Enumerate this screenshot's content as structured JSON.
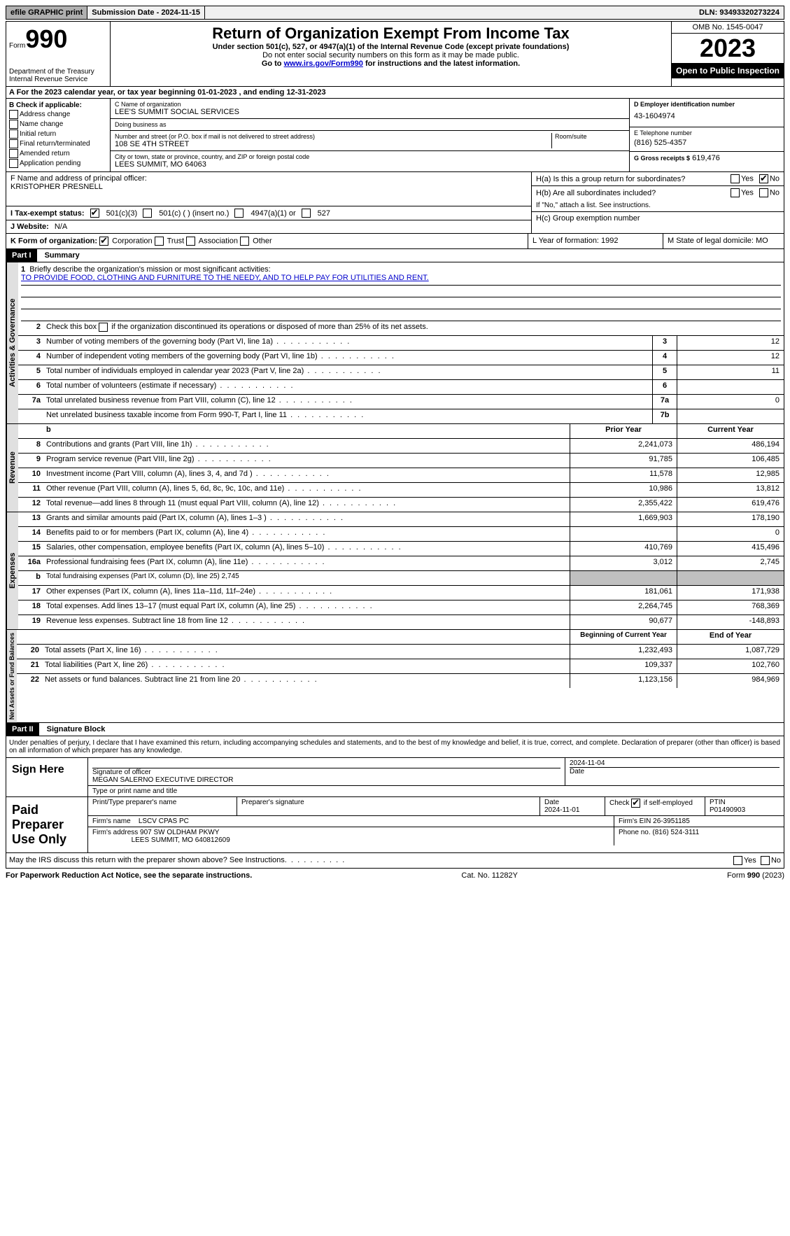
{
  "topbar": {
    "efile": "efile GRAPHIC print",
    "submission": "Submission Date - 2024-11-15",
    "dln": "DLN: 93493320273224"
  },
  "header": {
    "form_prefix": "Form",
    "form_num": "990",
    "dept": "Department of the Treasury",
    "irs": "Internal Revenue Service",
    "title": "Return of Organization Exempt From Income Tax",
    "sub1": "Under section 501(c), 527, or 4947(a)(1) of the Internal Revenue Code (except private foundations)",
    "sub2": "Do not enter social security numbers on this form as it may be made public.",
    "sub3_pre": "Go to ",
    "sub3_link": "www.irs.gov/Form990",
    "sub3_post": " for instructions and the latest information.",
    "omb": "OMB No. 1545-0047",
    "year": "2023",
    "open": "Open to Public Inspection"
  },
  "a_row": "A For the 2023 calendar year, or tax year beginning 01-01-2023   , and ending 12-31-2023",
  "b": {
    "label": "B Check if applicable:",
    "items": [
      "Address change",
      "Name change",
      "Initial return",
      "Final return/terminated",
      "Amended return",
      "Application pending"
    ]
  },
  "c": {
    "name_label": "C Name of organization",
    "name": "LEE'S SUMMIT SOCIAL SERVICES",
    "dba_label": "Doing business as",
    "dba": "",
    "street_label": "Number and street (or P.O. box if mail is not delivered to street address)",
    "street": "108 SE 4TH STREET",
    "room_label": "Room/suite",
    "city_label": "City or town, state or province, country, and ZIP or foreign postal code",
    "city": "LEES SUMMIT, MO  64063"
  },
  "d": {
    "label": "D Employer identification number",
    "value": "43-1604974"
  },
  "e": {
    "label": "E Telephone number",
    "value": "(816) 525-4357"
  },
  "g": {
    "label": "G Gross receipts $",
    "value": "619,476"
  },
  "f": {
    "label": "F  Name and address of principal officer:",
    "name": "KRISTOPHER PRESNELL"
  },
  "h": {
    "a": "H(a)  Is this a group return for subordinates?",
    "a_no_checked": true,
    "b": "H(b)  Are all subordinates included?",
    "b_note": "If \"No,\" attach a list. See instructions.",
    "c": "H(c)  Group exemption number"
  },
  "i": {
    "label": "I   Tax-exempt status:",
    "opt1": "501(c)(3)",
    "opt2": "501(c) (  ) (insert no.)",
    "opt3": "4947(a)(1) or",
    "opt4": "527"
  },
  "j": {
    "label": "J   Website:",
    "value": "N/A"
  },
  "k": {
    "label": "K Form of organization:",
    "opts": [
      "Corporation",
      "Trust",
      "Association",
      "Other"
    ],
    "l": "L Year of formation: 1992",
    "m": "M State of legal domicile: MO"
  },
  "part1": {
    "num": "Part I",
    "title": "Summary"
  },
  "summary": {
    "sec1_label": "Activities & Governance",
    "sec2_label": "Revenue",
    "sec3_label": "Expenses",
    "sec4_label": "Net Assets or Fund Balances",
    "line1": "Briefly describe the organization's mission or most significant activities:",
    "mission": "TO PROVIDE FOOD, CLOTHING AND FURNITURE TO THE NEEDY, AND TO HELP PAY FOR UTILITIES AND RENT.",
    "line2": "Check this box       if the organization discontinued its operations or disposed of more than 25% of its net assets.",
    "hdr_prior": "Prior Year",
    "hdr_current": "Current Year",
    "hdr_begin": "Beginning of Current Year",
    "hdr_end": "End of Year",
    "rows_gov": [
      {
        "n": "3",
        "t": "Number of voting members of the governing body (Part VI, line 1a)",
        "box": "3",
        "v": "12"
      },
      {
        "n": "4",
        "t": "Number of independent voting members of the governing body (Part VI, line 1b)",
        "box": "4",
        "v": "12"
      },
      {
        "n": "5",
        "t": "Total number of individuals employed in calendar year 2023 (Part V, line 2a)",
        "box": "5",
        "v": "11"
      },
      {
        "n": "6",
        "t": "Total number of volunteers (estimate if necessary)",
        "box": "6",
        "v": ""
      },
      {
        "n": "7a",
        "t": "Total unrelated business revenue from Part VIII, column (C), line 12",
        "box": "7a",
        "v": "0"
      },
      {
        "n": "",
        "t": "Net unrelated business taxable income from Form 990-T, Part I, line 11",
        "box": "7b",
        "v": ""
      }
    ],
    "rows_rev": [
      {
        "n": "8",
        "t": "Contributions and grants (Part VIII, line 1h)",
        "p": "2,241,073",
        "c": "486,194"
      },
      {
        "n": "9",
        "t": "Program service revenue (Part VIII, line 2g)",
        "p": "91,785",
        "c": "106,485"
      },
      {
        "n": "10",
        "t": "Investment income (Part VIII, column (A), lines 3, 4, and 7d )",
        "p": "11,578",
        "c": "12,985"
      },
      {
        "n": "11",
        "t": "Other revenue (Part VIII, column (A), lines 5, 6d, 8c, 9c, 10c, and 11e)",
        "p": "10,986",
        "c": "13,812"
      },
      {
        "n": "12",
        "t": "Total revenue—add lines 8 through 11 (must equal Part VIII, column (A), line 12)",
        "p": "2,355,422",
        "c": "619,476"
      }
    ],
    "rows_exp": [
      {
        "n": "13",
        "t": "Grants and similar amounts paid (Part IX, column (A), lines 1–3 )",
        "p": "1,669,903",
        "c": "178,190"
      },
      {
        "n": "14",
        "t": "Benefits paid to or for members (Part IX, column (A), line 4)",
        "p": "",
        "c": "0"
      },
      {
        "n": "15",
        "t": "Salaries, other compensation, employee benefits (Part IX, column (A), lines 5–10)",
        "p": "410,769",
        "c": "415,496"
      },
      {
        "n": "16a",
        "t": "Professional fundraising fees (Part IX, column (A), line 11e)",
        "p": "3,012",
        "c": "2,745"
      },
      {
        "n": "b",
        "t": "Total fundraising expenses (Part IX, column (D), line 25) 2,745",
        "gray": true
      },
      {
        "n": "17",
        "t": "Other expenses (Part IX, column (A), lines 11a–11d, 11f–24e)",
        "p": "181,061",
        "c": "171,938"
      },
      {
        "n": "18",
        "t": "Total expenses. Add lines 13–17 (must equal Part IX, column (A), line 25)",
        "p": "2,264,745",
        "c": "768,369"
      },
      {
        "n": "19",
        "t": "Revenue less expenses. Subtract line 18 from line 12",
        "p": "90,677",
        "c": "-148,893"
      }
    ],
    "rows_net": [
      {
        "n": "20",
        "t": "Total assets (Part X, line 16)",
        "p": "1,232,493",
        "c": "1,087,729"
      },
      {
        "n": "21",
        "t": "Total liabilities (Part X, line 26)",
        "p": "109,337",
        "c": "102,760"
      },
      {
        "n": "22",
        "t": "Net assets or fund balances. Subtract line 21 from line 20",
        "p": "1,123,156",
        "c": "984,969"
      }
    ]
  },
  "part2": {
    "num": "Part II",
    "title": "Signature Block"
  },
  "penalties": "Under penalties of perjury, I declare that I have examined this return, including accompanying schedules and statements, and to the best of my knowledge and belief, it is true, correct, and complete. Declaration of preparer (other than officer) is based on all information of which preparer has any knowledge.",
  "sign": {
    "label": "Sign Here",
    "date": "2024-11-04",
    "sig_label": "Signature of officer",
    "officer": "MEGAN SALERNO  EXECUTIVE DIRECTOR",
    "type_label": "Type or print name and title",
    "date_label": "Date"
  },
  "preparer": {
    "label": "Paid Preparer Use Only",
    "name_label": "Print/Type preparer's name",
    "sig_label": "Preparer's signature",
    "date_label": "Date",
    "date": "2024-11-01",
    "check_label": "Check         if self-employed",
    "ptin_label": "PTIN",
    "ptin": "P01490903",
    "firm_name_label": "Firm's name",
    "firm_name": "LSCV CPAS PC",
    "firm_ein_label": "Firm's EIN",
    "firm_ein": "26-3951185",
    "firm_addr_label": "Firm's address",
    "firm_addr1": "907 SW OLDHAM PKWY",
    "firm_addr2": "LEES SUMMIT, MO  640812609",
    "phone_label": "Phone no.",
    "phone": "(816) 524-3111"
  },
  "discuss": "May the IRS discuss this return with the preparer shown above? See Instructions.",
  "footer": {
    "left": "For Paperwork Reduction Act Notice, see the separate instructions.",
    "mid": "Cat. No. 11282Y",
    "right": "Form 990 (2023)"
  },
  "yes": "Yes",
  "no": "No"
}
